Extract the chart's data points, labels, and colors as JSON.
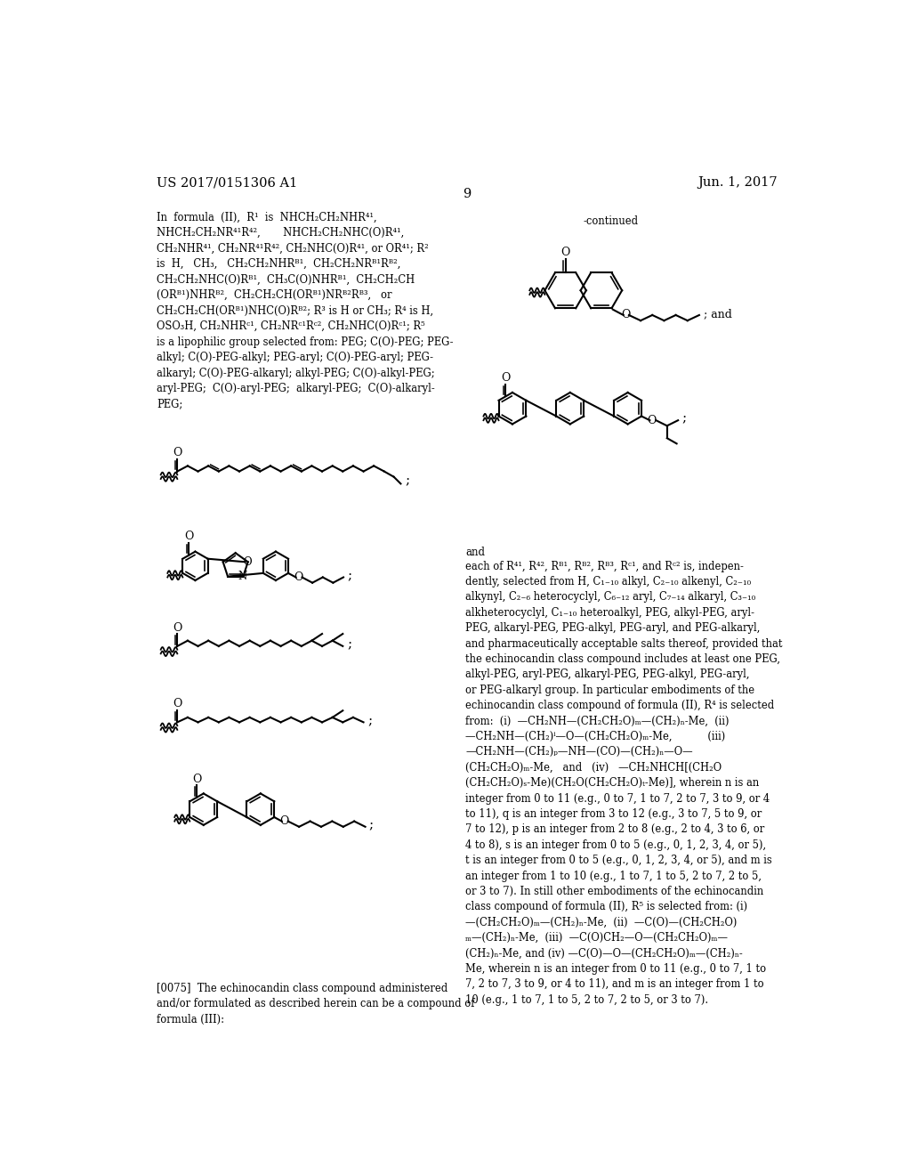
{
  "page_number": "9",
  "patent_number": "US 2017/0151306 A1",
  "patent_date": "Jun. 1, 2017",
  "background_color": "#ffffff",
  "text_color": "#000000"
}
